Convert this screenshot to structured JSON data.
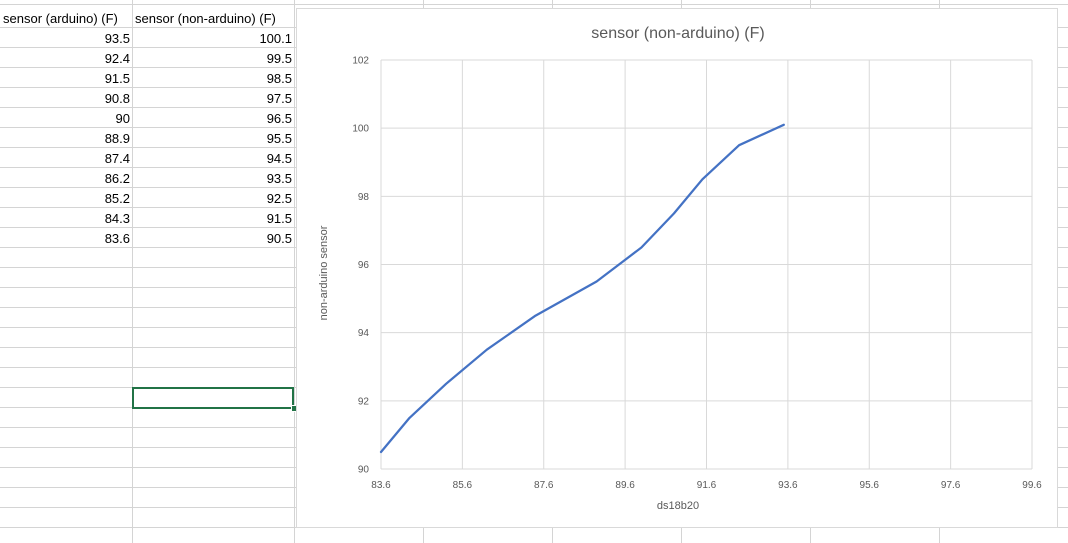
{
  "table": {
    "headers": [
      "sensor (arduino) (F)",
      "sensor (non-arduino) (F)"
    ],
    "rows": [
      [
        "93.5",
        "100.1"
      ],
      [
        "92.4",
        "99.5"
      ],
      [
        "91.5",
        "98.5"
      ],
      [
        "90.8",
        "97.5"
      ],
      [
        "90",
        "96.5"
      ],
      [
        "88.9",
        "95.5"
      ],
      [
        "87.4",
        "94.5"
      ],
      [
        "86.2",
        "93.5"
      ],
      [
        "85.2",
        "92.5"
      ],
      [
        "84.3",
        "91.5"
      ],
      [
        "83.6",
        "90.5"
      ]
    ]
  },
  "chart_data": {
    "type": "line",
    "title": "sensor (non-arduino) (F)",
    "xlabel": "ds18b20",
    "ylabel": "non-arduino sensor",
    "xlim": [
      83.6,
      99.6
    ],
    "ylim": [
      90,
      102
    ],
    "x_ticks": [
      "83.6",
      "85.6",
      "87.6",
      "89.6",
      "91.6",
      "93.6",
      "95.6",
      "97.6",
      "99.6"
    ],
    "y_ticks": [
      "90",
      "92",
      "94",
      "96",
      "98",
      "100",
      "102"
    ],
    "grid": true,
    "line_color": "#4472c4",
    "series": [
      {
        "x": [
          83.6,
          84.3,
          85.2,
          86.2,
          87.4,
          88.9,
          90,
          90.8,
          91.5,
          92.4,
          93.5
        ],
        "y": [
          90.5,
          91.5,
          92.5,
          93.5,
          94.5,
          95.5,
          96.5,
          97.5,
          98.5,
          99.5,
          100.1
        ]
      }
    ]
  }
}
